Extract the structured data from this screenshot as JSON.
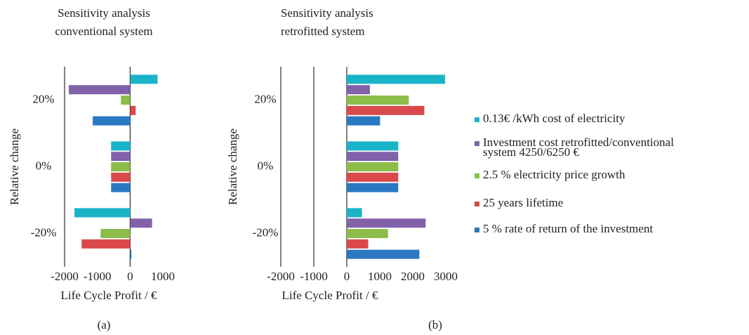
{
  "chart_data": [
    {
      "type": "barh",
      "title": [
        "Sensitivity analysis",
        "conventional system"
      ],
      "xlabel": "Life Cycle Profit / €",
      "ylabel": "Relative change",
      "panel_label": "(a)",
      "categories": [
        "20%",
        "0%",
        "-20%"
      ],
      "series": [
        {
          "values": [
            840,
            -580,
            -1700
          ]
        },
        {
          "values": [
            -1870,
            -580,
            670
          ]
        },
        {
          "values": [
            -280,
            -580,
            -900
          ]
        },
        {
          "values": [
            170,
            -580,
            -1480
          ]
        },
        {
          "values": [
            -1140,
            -580,
            40
          ]
        }
      ],
      "xlim": [
        -2000,
        1000
      ],
      "xticks": [
        -2000,
        -1000,
        0,
        1000
      ],
      "x_gridlines": [
        0
      ]
    },
    {
      "type": "barh",
      "title": [
        "Sensitivity analysis",
        "retrofitted system"
      ],
      "xlabel": "Life Cycle Profit /  €",
      "ylabel": "Relative change",
      "panel_label": "(b)",
      "categories": [
        "20%",
        "0%",
        "-20%"
      ],
      "series": [
        {
          "values": [
            2980,
            1560,
            460
          ]
        },
        {
          "values": [
            700,
            1560,
            2390
          ]
        },
        {
          "values": [
            1880,
            1560,
            1250
          ]
        },
        {
          "values": [
            2350,
            1560,
            650
          ]
        },
        {
          "values": [
            1010,
            1560,
            2200
          ]
        }
      ],
      "xlim": [
        -2000,
        3000
      ],
      "xticks": [
        -2000,
        -1000,
        0,
        1000,
        2000,
        3000
      ],
      "x_gridlines": [
        -1000,
        0
      ]
    }
  ],
  "legend": [
    {
      "name": "0.13€ /kWh cost of electricity",
      "color": "#1ab4c8"
    },
    {
      "name": "Investment cost retrofitted/conventional\nsystem 4250/6250 €",
      "color": "#8161aa"
    },
    {
      "name": "2.5 % electricity price growth",
      "color": "#8cbc4a"
    },
    {
      "name": "25 years lifetime",
      "color": "#d9494b"
    },
    {
      "name": "5 % rate of return of the investment",
      "color": "#2a78c0"
    }
  ]
}
